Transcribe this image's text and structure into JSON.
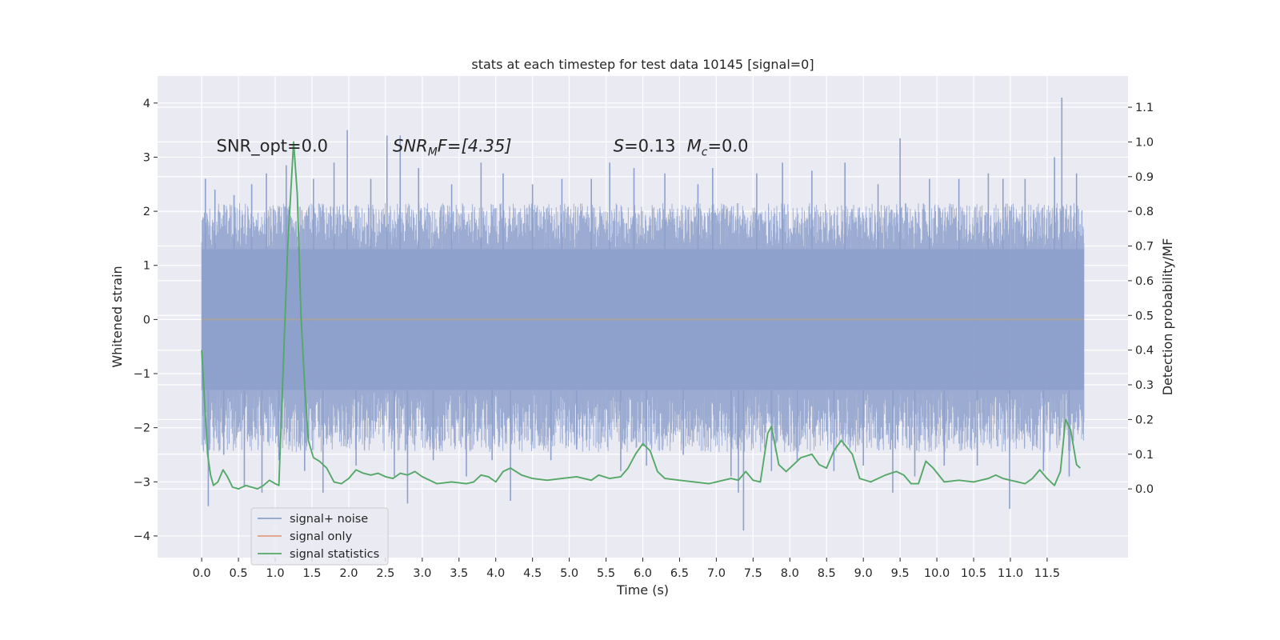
{
  "chart_data": {
    "type": "line",
    "title": "stats at each timestep for test data 10145 [signal=0]",
    "xlabel": "Time (s)",
    "ylabel": "Whitened strain",
    "y2label": "Detection probability/MF",
    "xlim": [
      -0.6,
      12.6
    ],
    "ylim": [
      -4.4,
      4.5
    ],
    "y2lim": [
      -0.198,
      1.19
    ],
    "x_ticks": [
      0.0,
      0.5,
      1.0,
      1.5,
      2.0,
      2.5,
      3.0,
      3.5,
      4.0,
      4.5,
      5.0,
      5.5,
      6.0,
      6.5,
      7.0,
      7.5,
      8.0,
      8.5,
      9.0,
      9.5,
      10.0,
      10.5,
      11.0,
      11.5
    ],
    "x_tick_labels": [
      "0.0",
      "0.5",
      "1.0",
      "1.5",
      "2.0",
      "2.5",
      "3.0",
      "3.5",
      "4.0",
      "4.5",
      "5.0",
      "5.5",
      "6.0",
      "6.5",
      "7.0",
      "7.5",
      "8.0",
      "8.5",
      "9.0",
      "9.5",
      "10.0",
      "10.5",
      "11.0",
      "11.5"
    ],
    "y_ticks": [
      -4,
      -3,
      -2,
      -1,
      0,
      1,
      2,
      3,
      4
    ],
    "y_tick_labels": [
      "−4",
      "−3",
      "−2",
      "−1",
      "0",
      "1",
      "2",
      "3",
      "4"
    ],
    "y2_ticks": [
      0.0,
      0.1,
      0.2,
      0.3,
      0.4,
      0.5,
      0.6,
      0.7,
      0.8,
      0.9,
      1.0,
      1.1
    ],
    "y2_tick_labels": [
      "0.0",
      "0.1",
      "0.2",
      "0.3",
      "0.4",
      "0.5",
      "0.6",
      "0.7",
      "0.8",
      "0.9",
      "1.0",
      "1.1"
    ],
    "grid": true,
    "legend_position": "lower-left",
    "annotations": {
      "snr_opt": "SNR_opt=0.0",
      "snr_mf_main": "SNR",
      "snr_mf_sub": "M",
      "snr_mf_rest": "F=[4.35]",
      "s_sym": "S",
      "s_val": "=0.13",
      "mc_sym": "M",
      "mc_sub": "c",
      "mc_val": "=0.0"
    },
    "series": [
      {
        "name": "signal+ noise",
        "color": "#8da0cb",
        "axis": "left",
        "x_range": [
          0.0,
          12.0
        ],
        "core_band": [
          -1.3,
          1.3
        ],
        "typical_band": [
          -2.0,
          2.0
        ],
        "spikes": [
          {
            "x": 0.05,
            "y": 2.6
          },
          {
            "x": 0.09,
            "y": -3.45
          },
          {
            "x": 0.18,
            "y": 2.4
          },
          {
            "x": 0.3,
            "y": -2.5
          },
          {
            "x": 0.44,
            "y": 2.3
          },
          {
            "x": 0.58,
            "y": -3.1
          },
          {
            "x": 0.68,
            "y": 2.5
          },
          {
            "x": 0.82,
            "y": -3.2
          },
          {
            "x": 0.88,
            "y": 2.7
          },
          {
            "x": 1.05,
            "y": -2.6
          },
          {
            "x": 1.15,
            "y": 2.85
          },
          {
            "x": 1.4,
            "y": -2.8
          },
          {
            "x": 1.52,
            "y": 2.6
          },
          {
            "x": 1.65,
            "y": -3.2
          },
          {
            "x": 1.8,
            "y": 2.9
          },
          {
            "x": 1.98,
            "y": 3.5
          },
          {
            "x": 2.1,
            "y": -2.7
          },
          {
            "x": 2.3,
            "y": 2.6
          },
          {
            "x": 2.52,
            "y": 3.4
          },
          {
            "x": 2.62,
            "y": -2.9
          },
          {
            "x": 2.7,
            "y": 3.4
          },
          {
            "x": 2.8,
            "y": -3.4
          },
          {
            "x": 2.95,
            "y": 2.8
          },
          {
            "x": 3.15,
            "y": -2.6
          },
          {
            "x": 3.4,
            "y": 2.5
          },
          {
            "x": 3.6,
            "y": -2.9
          },
          {
            "x": 3.8,
            "y": 2.9
          },
          {
            "x": 3.95,
            "y": -2.6
          },
          {
            "x": 4.1,
            "y": 2.7
          },
          {
            "x": 4.2,
            "y": -3.35
          },
          {
            "x": 4.5,
            "y": 2.5
          },
          {
            "x": 4.75,
            "y": -2.6
          },
          {
            "x": 4.9,
            "y": 2.6
          },
          {
            "x": 5.1,
            "y": -2.4
          },
          {
            "x": 5.3,
            "y": 2.6
          },
          {
            "x": 5.55,
            "y": 2.9
          },
          {
            "x": 5.7,
            "y": -2.8
          },
          {
            "x": 5.88,
            "y": 2.8
          },
          {
            "x": 6.05,
            "y": -2.7
          },
          {
            "x": 6.3,
            "y": 2.7
          },
          {
            "x": 6.55,
            "y": -2.5
          },
          {
            "x": 6.75,
            "y": 2.5
          },
          {
            "x": 6.95,
            "y": 2.8
          },
          {
            "x": 7.2,
            "y": -2.9
          },
          {
            "x": 7.3,
            "y": -3.2
          },
          {
            "x": 7.37,
            "y": -3.9
          },
          {
            "x": 7.55,
            "y": 2.7
          },
          {
            "x": 7.75,
            "y": -2.8
          },
          {
            "x": 7.9,
            "y": 2.9
          },
          {
            "x": 8.1,
            "y": -2.6
          },
          {
            "x": 8.3,
            "y": 2.75
          },
          {
            "x": 8.6,
            "y": -2.8
          },
          {
            "x": 8.75,
            "y": 2.9
          },
          {
            "x": 9.0,
            "y": -2.7
          },
          {
            "x": 9.2,
            "y": 2.5
          },
          {
            "x": 9.4,
            "y": -3.2
          },
          {
            "x": 9.5,
            "y": 3.35
          },
          {
            "x": 9.7,
            "y": -2.9
          },
          {
            "x": 9.9,
            "y": 2.6
          },
          {
            "x": 10.1,
            "y": -2.7
          },
          {
            "x": 10.3,
            "y": 2.6
          },
          {
            "x": 10.55,
            "y": -2.7
          },
          {
            "x": 10.7,
            "y": 2.7
          },
          {
            "x": 10.9,
            "y": 2.6
          },
          {
            "x": 10.99,
            "y": -3.5
          },
          {
            "x": 11.2,
            "y": 2.6
          },
          {
            "x": 11.45,
            "y": -2.8
          },
          {
            "x": 11.6,
            "y": 3.0
          },
          {
            "x": 11.7,
            "y": 4.1
          },
          {
            "x": 11.8,
            "y": -2.9
          },
          {
            "x": 11.9,
            "y": 2.7
          }
        ]
      },
      {
        "name": "signal only",
        "color": "#e39e85",
        "axis": "left",
        "x": [
          0.0,
          12.0
        ],
        "y": [
          0.0,
          0.0
        ]
      },
      {
        "name": "signal statistics",
        "color": "#55a868",
        "axis": "right",
        "x": [
          0.0,
          0.04,
          0.08,
          0.12,
          0.16,
          0.22,
          0.29,
          0.35,
          0.42,
          0.5,
          0.6,
          0.68,
          0.76,
          0.84,
          0.92,
          1.0,
          1.05,
          1.1,
          1.17,
          1.25,
          1.3,
          1.35,
          1.4,
          1.45,
          1.52,
          1.6,
          1.7,
          1.8,
          1.9,
          2.0,
          2.1,
          2.2,
          2.3,
          2.4,
          2.5,
          2.6,
          2.7,
          2.8,
          2.9,
          3.0,
          3.2,
          3.4,
          3.6,
          3.7,
          3.8,
          3.9,
          4.0,
          4.1,
          4.2,
          4.35,
          4.5,
          4.7,
          4.9,
          5.1,
          5.3,
          5.4,
          5.55,
          5.7,
          5.8,
          5.9,
          6.0,
          6.1,
          6.2,
          6.3,
          6.5,
          6.7,
          6.9,
          7.0,
          7.2,
          7.3,
          7.4,
          7.5,
          7.6,
          7.7,
          7.75,
          7.85,
          7.95,
          8.05,
          8.15,
          8.3,
          8.4,
          8.5,
          8.6,
          8.7,
          8.85,
          8.95,
          9.1,
          9.3,
          9.45,
          9.55,
          9.65,
          9.75,
          9.85,
          9.95,
          10.1,
          10.3,
          10.5,
          10.7,
          10.8,
          10.9,
          11.0,
          11.1,
          11.2,
          11.3,
          11.4,
          11.5,
          11.6,
          11.68,
          11.75,
          11.82,
          11.9,
          11.95
        ],
        "y": [
          0.4,
          0.25,
          0.1,
          0.04,
          0.01,
          0.02,
          0.055,
          0.035,
          0.005,
          0.0,
          0.01,
          0.005,
          0.0,
          0.01,
          0.025,
          0.015,
          0.01,
          0.3,
          0.7,
          1.0,
          0.85,
          0.5,
          0.3,
          0.14,
          0.09,
          0.08,
          0.06,
          0.02,
          0.015,
          0.03,
          0.055,
          0.045,
          0.04,
          0.045,
          0.035,
          0.03,
          0.045,
          0.04,
          0.05,
          0.035,
          0.015,
          0.02,
          0.015,
          0.02,
          0.04,
          0.035,
          0.02,
          0.05,
          0.06,
          0.04,
          0.03,
          0.025,
          0.03,
          0.035,
          0.025,
          0.04,
          0.03,
          0.035,
          0.06,
          0.1,
          0.13,
          0.11,
          0.05,
          0.03,
          0.025,
          0.02,
          0.015,
          0.02,
          0.03,
          0.025,
          0.05,
          0.025,
          0.02,
          0.16,
          0.18,
          0.07,
          0.05,
          0.07,
          0.09,
          0.1,
          0.07,
          0.06,
          0.11,
          0.14,
          0.1,
          0.03,
          0.02,
          0.04,
          0.05,
          0.04,
          0.015,
          0.015,
          0.08,
          0.06,
          0.02,
          0.025,
          0.02,
          0.03,
          0.04,
          0.03,
          0.025,
          0.02,
          0.015,
          0.03,
          0.055,
          0.03,
          0.01,
          0.05,
          0.2,
          0.17,
          0.07,
          0.06
        ]
      }
    ]
  }
}
